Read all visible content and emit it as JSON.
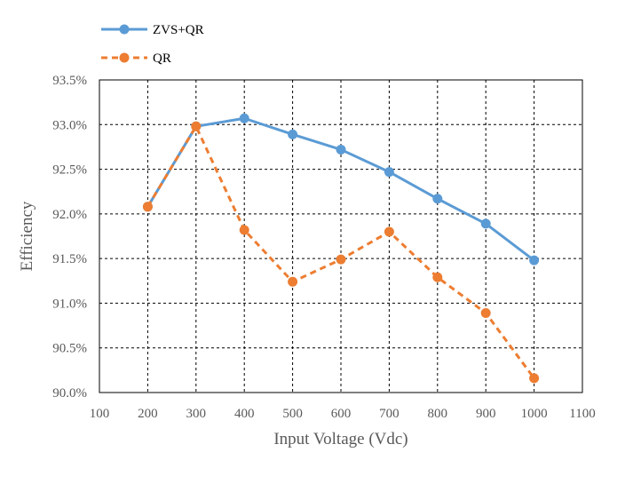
{
  "chart_data": {
    "type": "line",
    "title": "",
    "xlabel": "Input Voltage (Vdc)",
    "ylabel": "Efficiency",
    "xlim": [
      100,
      1100
    ],
    "ylim": [
      90.0,
      93.5
    ],
    "x_ticks": [
      "100",
      "200",
      "300",
      "400",
      "500",
      "600",
      "700",
      "800",
      "900",
      "1000",
      "1100"
    ],
    "y_ticks": [
      "90.0%",
      "90.5%",
      "91.0%",
      "91.5%",
      "92.0%",
      "92.5%",
      "93.0%",
      "93.5%"
    ],
    "grid": true,
    "legend_position": "top-left",
    "series": [
      {
        "name": "ZVS+QR",
        "color": "#5B9BD5",
        "line_style": "solid",
        "x": [
          200,
          300,
          400,
          500,
          600,
          700,
          800,
          900,
          1000
        ],
        "y": [
          92.08,
          92.98,
          93.07,
          92.89,
          92.72,
          92.47,
          92.17,
          91.89,
          91.48
        ]
      },
      {
        "name": "QR",
        "color": "#ED7D31",
        "line_style": "dashed",
        "x": [
          200,
          300,
          400,
          500,
          600,
          700,
          800,
          900,
          1000
        ],
        "y": [
          92.08,
          92.98,
          91.82,
          91.24,
          91.49,
          91.8,
          91.29,
          90.89,
          90.16
        ]
      }
    ]
  }
}
